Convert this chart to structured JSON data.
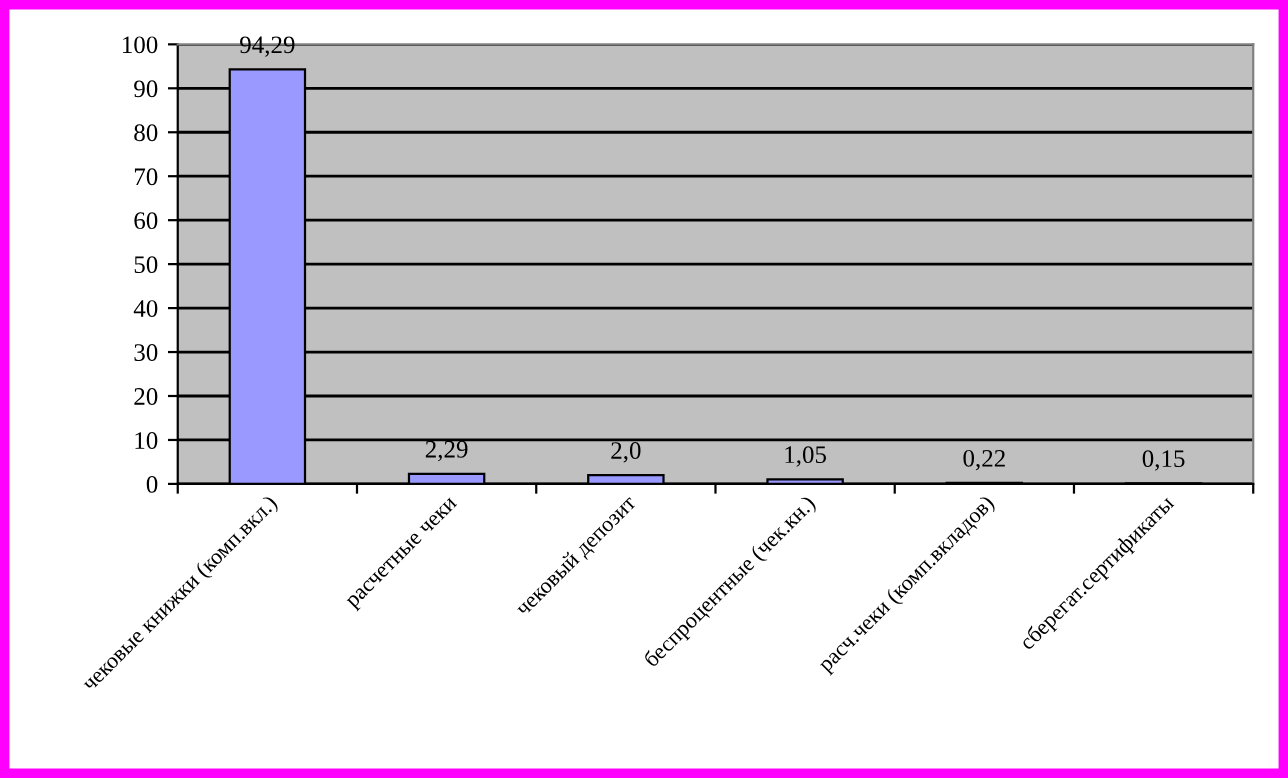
{
  "chart_data": {
    "type": "bar",
    "categories": [
      "чековые книжки (комп.вкл.)",
      "расчетные чеки",
      "чековый депозит",
      "беспроцентные (чек.кн.)",
      "расч.чеки (комп.вкладов)",
      "сберегат.сертификаты"
    ],
    "values": [
      94.29,
      2.29,
      2.0,
      1.05,
      0.22,
      0.15
    ],
    "value_labels": [
      "94,29",
      "2,29",
      "2,0",
      "1,05",
      "0,22",
      "0,15"
    ],
    "color": "#9999ff",
    "ylim": [
      0,
      100
    ],
    "yticks": [
      0,
      10,
      20,
      30,
      40,
      50,
      60,
      70,
      80,
      90,
      100
    ],
    "grid": "y",
    "legend": false
  }
}
